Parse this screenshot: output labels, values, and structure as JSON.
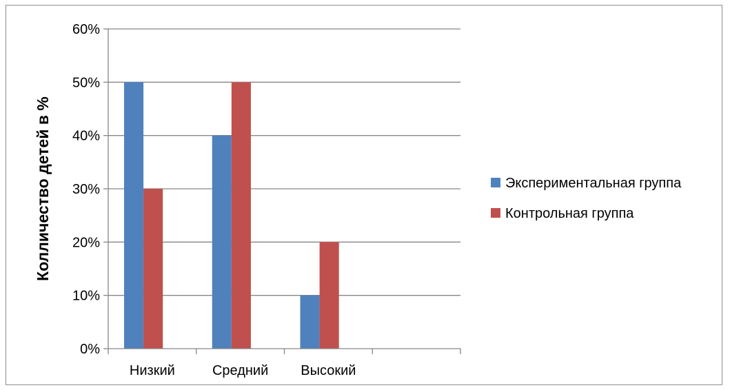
{
  "chart_data": {
    "type": "bar",
    "categories": [
      "Низкий",
      "Средний",
      "Высокий",
      ""
    ],
    "series": [
      {
        "name": "Экспериментальная группа",
        "values": [
          50,
          40,
          10,
          null
        ],
        "color": "#4f81bd"
      },
      {
        "name": "Контрольная группа",
        "values": [
          30,
          50,
          20,
          null
        ],
        "color": "#c0504d"
      }
    ],
    "ylabel": "Колличество детей в %",
    "ylim": [
      0,
      60
    ],
    "yticks": [
      "0%",
      "10%",
      "20%",
      "30%",
      "40%",
      "50%",
      "60%"
    ],
    "grid": true,
    "legend_position": "right"
  }
}
